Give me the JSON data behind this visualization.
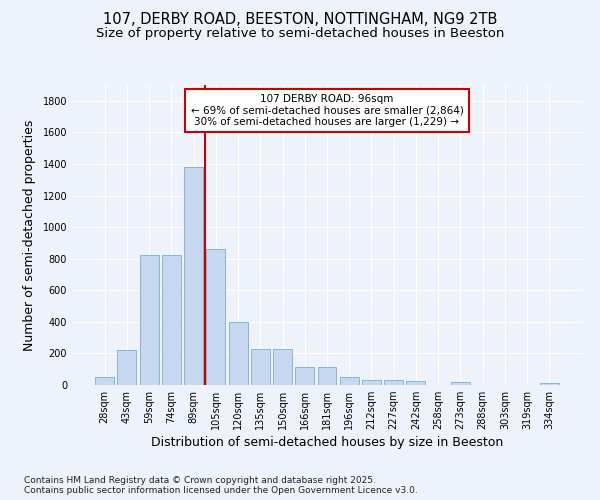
{
  "title_line1": "107, DERBY ROAD, BEESTON, NOTTINGHAM, NG9 2TB",
  "title_line2": "Size of property relative to semi-detached houses in Beeston",
  "xlabel": "Distribution of semi-detached houses by size in Beeston",
  "ylabel": "Number of semi-detached properties",
  "categories": [
    "28sqm",
    "43sqm",
    "59sqm",
    "74sqm",
    "89sqm",
    "105sqm",
    "120sqm",
    "135sqm",
    "150sqm",
    "166sqm",
    "181sqm",
    "196sqm",
    "212sqm",
    "227sqm",
    "242sqm",
    "258sqm",
    "273sqm",
    "288sqm",
    "303sqm",
    "319sqm",
    "334sqm"
  ],
  "values": [
    50,
    220,
    825,
    825,
    1380,
    860,
    400,
    225,
    225,
    115,
    115,
    50,
    30,
    30,
    25,
    0,
    18,
    0,
    0,
    0,
    15
  ],
  "bar_color": "#c5d8f0",
  "bar_edge_color": "#7badd4",
  "vline_color": "#cc0000",
  "vline_pos": 4.5,
  "annotation_text": "107 DERBY ROAD: 96sqm\n← 69% of semi-detached houses are smaller (2,864)\n30% of semi-detached houses are larger (1,229) →",
  "annotation_box_color": "#ffffff",
  "annotation_box_edge": "#cc0000",
  "ylim": [
    0,
    1900
  ],
  "yticks": [
    0,
    200,
    400,
    600,
    800,
    1000,
    1200,
    1400,
    1600,
    1800
  ],
  "background_color": "#eef2fb",
  "grid_color": "#ffffff",
  "footer_text": "Contains HM Land Registry data © Crown copyright and database right 2025.\nContains public sector information licensed under the Open Government Licence v3.0.",
  "title_fontsize": 10.5,
  "subtitle_fontsize": 9.5,
  "axis_label_fontsize": 9,
  "tick_fontsize": 7,
  "annotation_fontsize": 7.5,
  "footer_fontsize": 6.5
}
